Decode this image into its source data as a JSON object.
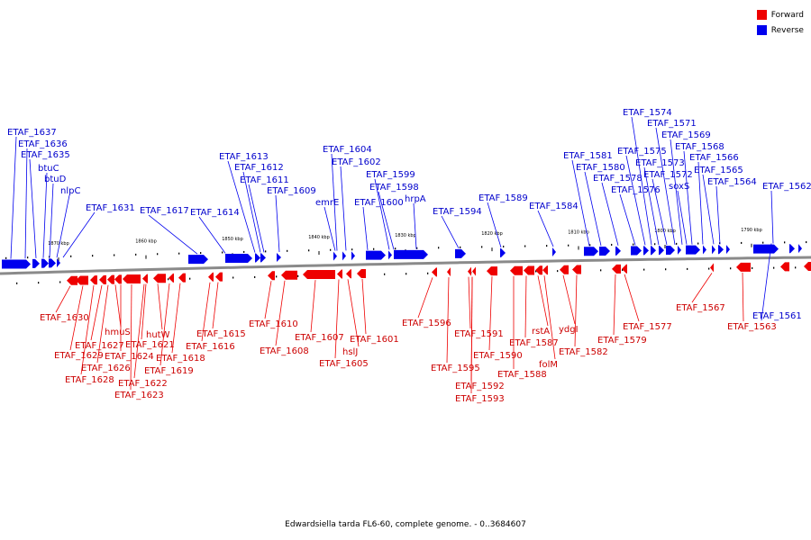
{
  "legend": {
    "forward_label": "Forward",
    "forward_color": "#ee0000",
    "reverse_label": "Reverse",
    "reverse_color": "#0000ee"
  },
  "caption": "Edwardsiella tarda FL6-60, complete genome. - 0..3684607",
  "ticks": [
    "1870 kbp",
    "1860 kbp",
    "1850 kbp",
    "1840 kbp",
    "1830 kbp",
    "1820 kbp",
    "1810 kbp",
    "1800 kbp",
    "1790 kbp"
  ],
  "reverse_labels": [
    "ETAF_1637",
    "ETAF_1636",
    "ETAF_1635",
    "btuC",
    "btuD",
    "nlpC",
    "ETAF_1631",
    "ETAF_1617",
    "ETAF_1614",
    "ETAF_1613",
    "ETAF_1612",
    "ETAF_1611",
    "ETAF_1609",
    "ETAF_1604",
    "ETAF_1602",
    "emrE",
    "ETAF_1600",
    "ETAF_1599",
    "ETAF_1598",
    "hrpA",
    "ETAF_1594",
    "ETAF_1589",
    "ETAF_1584",
    "ETAF_1581",
    "ETAF_1580",
    "ETAF_1578",
    "ETAF_1576",
    "ETAF_1575",
    "ETAF_1574",
    "ETAF_1573",
    "ETAF_1572",
    "ETAF_1571",
    "ETAF_1569",
    "ETAF_1568",
    "soxS",
    "ETAF_1566",
    "ETAF_1565",
    "ETAF_1564",
    "ETAF_1562",
    "ETAF_1561"
  ],
  "forward_labels": [
    "ETAF_1630",
    "ETAF_1629",
    "ETAF_1628",
    "ETAF_1627",
    "ETAF_1626",
    "hmuS",
    "ETAF_1624",
    "ETAF_1623",
    "ETAF_1622",
    "ETAF_1621",
    "hutW",
    "ETAF_1619",
    "ETAF_1618",
    "ETAF_1616",
    "ETAF_1615",
    "ETAF_1610",
    "ETAF_1608",
    "ETAF_1607",
    "ETAF_1605",
    "hslJ",
    "ETAF_1601",
    "ETAF_1596",
    "ETAF_1595",
    "ETAF_1593",
    "ETAF_1592",
    "ETAF_1591",
    "ETAF_1590",
    "ETAF_1588",
    "ETAF_1587",
    "rstA",
    "folM",
    "ydgI",
    "ETAF_1582",
    "ETAF_1579",
    "ETAF_1577",
    "ETAF_1567",
    "ETAF_1563"
  ]
}
